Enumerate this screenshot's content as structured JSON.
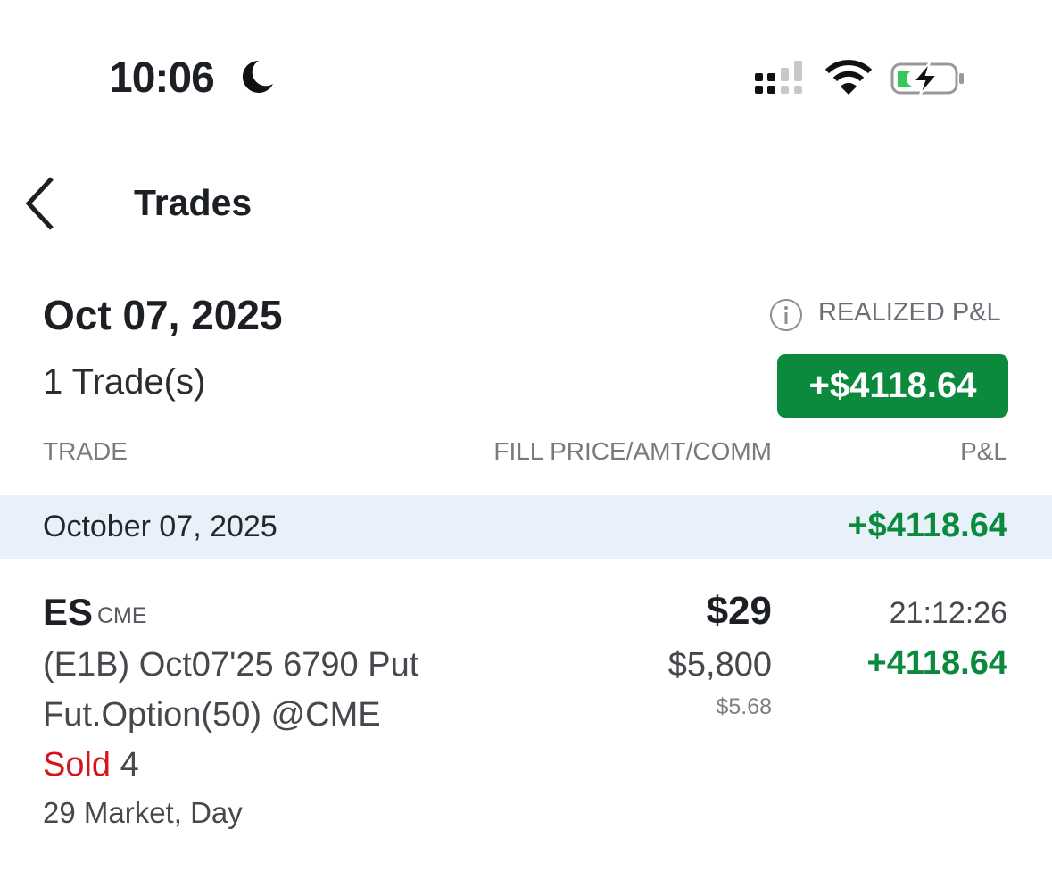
{
  "status_bar": {
    "time": "10:06",
    "icons": [
      "moon-icon",
      "signal-icon",
      "wifi-icon",
      "battery-charging-icon"
    ],
    "battery_color": "#34c759"
  },
  "nav": {
    "title": "Trades"
  },
  "summary": {
    "date": "Oct 07, 2025",
    "trade_count": "1 Trade(s)",
    "realized_label": "REALIZED P&L",
    "realized_value": "+$4118.64",
    "positive_color": "#0b8a3e"
  },
  "columns": {
    "trade": "TRADE",
    "fill": "FILL PRICE/AMT/COMM",
    "pnl": "P&L"
  },
  "group": {
    "date": "October 07, 2025",
    "pnl": "+$4118.64"
  },
  "trade": {
    "symbol": "ES",
    "exchange": "CME",
    "description_line1": "(E1B) Oct07'25 6790 Put",
    "description_line2": "Fut.Option(50) @CME",
    "action": "Sold",
    "quantity": "4",
    "order": "29 Market, Day",
    "fill_price": "$29",
    "amount": "$5,800",
    "commission": "$5.68",
    "time": "21:12:26",
    "pnl": "+4118.64"
  }
}
